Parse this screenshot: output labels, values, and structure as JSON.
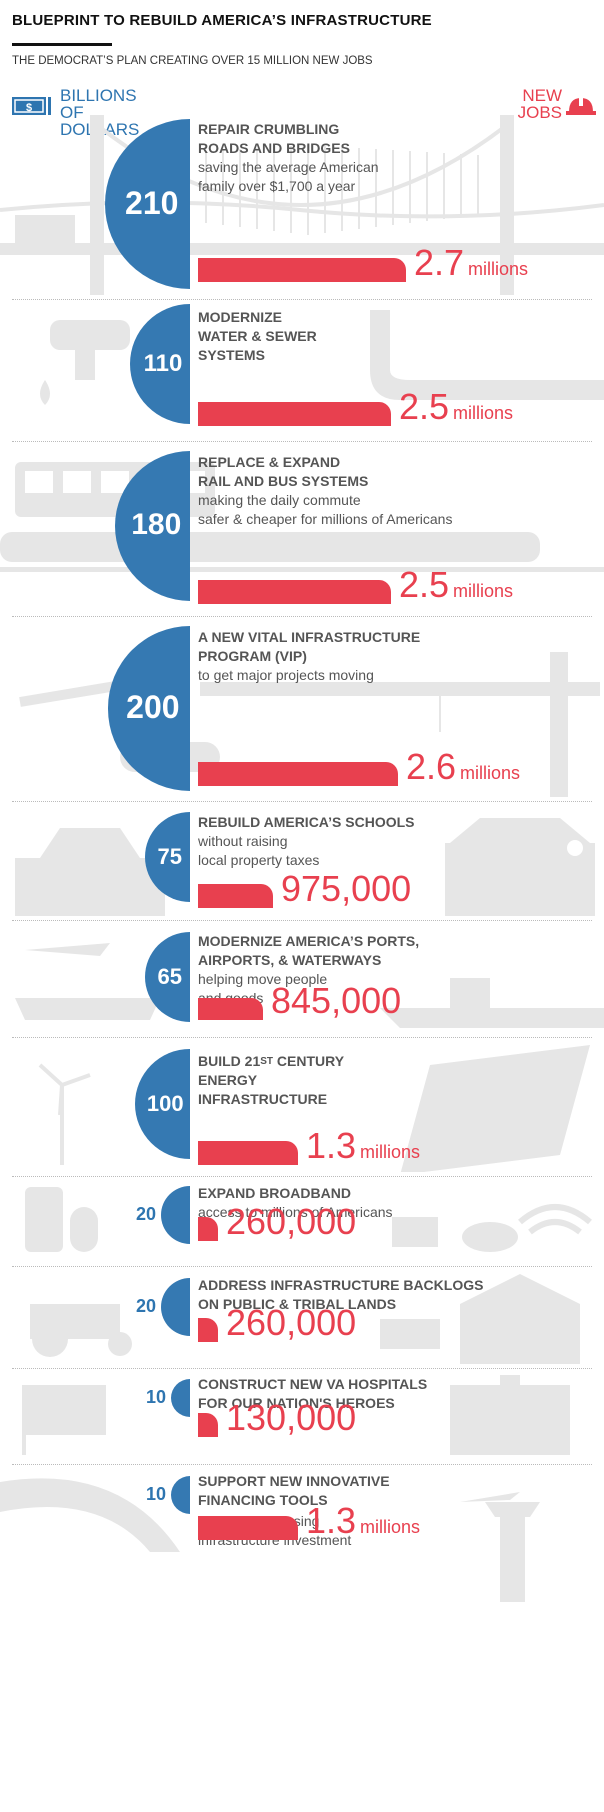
{
  "title": "BLUEPRINT TO REBUILD AMERICA’S INFRASTRUCTURE",
  "subtitle": "THE DEMOCRAT’S PLAN CREATING OVER 15 MILLION NEW JOBS",
  "legend": {
    "left": "BILLIONS\nOF DOLLARS",
    "right": "NEW\nJOBS",
    "left_color": "#2e75b0",
    "right_color": "#e8404f"
  },
  "chart_data": {
    "type": "bar",
    "title": "BLUEPRINT TO REBUILD AMERICA’S INFRASTRUCTURE",
    "subtitle": "THE DEMOCRAT’S PLAN CREATING OVER 15 MILLION NEW JOBS",
    "categories": [
      "REPAIR CRUMBLING ROADS AND BRIDGES",
      "MODERNIZE WATER & SEWER SYSTEMS",
      "REPLACE & EXPAND RAIL AND BUS SYSTEMS",
      "A NEW VITAL INFRASTRUCTURE PROGRAM (VIP)",
      "REBUILD AMERICA’S SCHOOLS",
      "MODERNIZE AMERICA’S PORTS, AIRPORTS, & WATERWAYS",
      "BUILD 21st CENTURY ENERGY INFRASTRUCTURE",
      "EXPAND BROADBAND",
      "ADDRESS INFRASTRUCTURE BACKLOGS ON PUBLIC & TRIBAL LANDS",
      "CONSTRUCT NEW VA HOSPITALS FOR OUR NATION'S HEROES",
      "SUPPORT NEW INNOVATIVE FINANCING TOOLS"
    ],
    "series": [
      {
        "name": "BILLIONS OF DOLLARS",
        "values": [
          210,
          110,
          180,
          200,
          75,
          65,
          100,
          20,
          20,
          10,
          10
        ]
      },
      {
        "name": "NEW JOBS",
        "values": [
          2700000,
          2500000,
          2500000,
          2600000,
          975000,
          845000,
          1300000,
          260000,
          260000,
          130000,
          1300000
        ]
      }
    ]
  },
  "items": [
    {
      "heading": "REPAIR CRUMBLING\nROADS AND BRIDGES",
      "desc": "saving the average American\nfamily over $1,700 a year",
      "amount": "210",
      "jobs": "2.7",
      "unit": "millions",
      "jobs_value": 2700000
    },
    {
      "heading": "MODERNIZE\nWATER & SEWER\nSYSTEMS",
      "desc": "",
      "amount": "110",
      "jobs": "2.5",
      "unit": "millions",
      "jobs_value": 2500000
    },
    {
      "heading": "REPLACE & EXPAND\nRAIL AND BUS SYSTEMS",
      "desc": "making the daily commute\nsafer & cheaper for millions of Americans",
      "amount": "180",
      "jobs": "2.5",
      "unit": "millions",
      "jobs_value": 2500000
    },
    {
      "heading": "A NEW VITAL INFRASTRUCTURE\nPROGRAM (VIP)",
      "desc": "to get major projects moving",
      "amount": "200",
      "jobs": "2.6",
      "unit": "millions",
      "jobs_value": 2600000
    },
    {
      "heading": "REBUILD AMERICA’S SCHOOLS",
      "desc": "without raising\nlocal property taxes",
      "amount": "75",
      "jobs": "975,000",
      "unit": "",
      "jobs_value": 975000
    },
    {
      "heading": "MODERNIZE AMERICA’S PORTS,\nAIRPORTS, & WATERWAYS",
      "desc": "helping move people\nand goods",
      "amount": "65",
      "jobs": "845,000",
      "unit": "",
      "jobs_value": 845000
    },
    {
      "heading_pre": "BUILD 21",
      "heading_sup": "st",
      "heading_post": " CENTURY\nENERGY\nINFRASTRUCTURE",
      "desc": "",
      "amount": "100",
      "jobs": "1.3",
      "unit": "millions",
      "jobs_value": 1300000
    },
    {
      "heading": "EXPAND BROADBAND",
      "desc": "access to millions of Americans",
      "amount": "20",
      "jobs": "260,000",
      "unit": "",
      "jobs_value": 260000
    },
    {
      "heading": "ADDRESS INFRASTRUCTURE BACKLOGS\nON PUBLIC & TRIBAL LANDS",
      "desc": "",
      "amount": "20",
      "jobs": "260,000",
      "unit": "",
      "jobs_value": 260000
    },
    {
      "heading": "CONSTRUCT NEW VA HOSPITALS\nFOR OUR NATION'S HEROES",
      "desc": "",
      "amount": "10",
      "jobs": "130,000",
      "unit": "",
      "jobs_value": 130000
    },
    {
      "heading": "SUPPORT NEW INNOVATIVE\nFINANCING TOOLS",
      "desc": "aimed at increasing\ninfrastructure investment",
      "amount": "10",
      "jobs": "1.3",
      "unit": "millions",
      "jobs_value": 1300000
    }
  ]
}
